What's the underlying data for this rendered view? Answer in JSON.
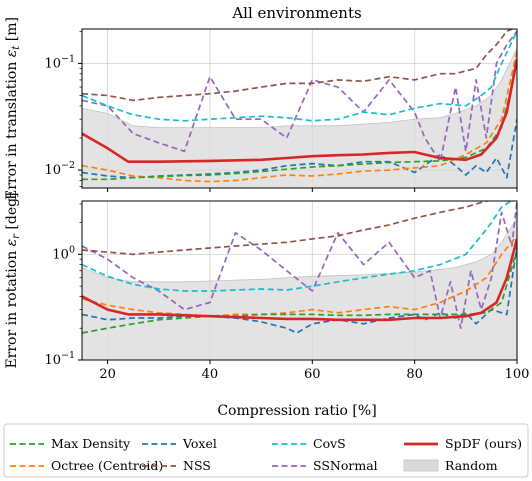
{
  "chart_data": {
    "type": "line",
    "title": "All environments",
    "xlabel": "Compression ratio [%]",
    "x_ticks": [
      "20",
      "40",
      "60",
      "80",
      "100"
    ],
    "xlim": [
      15,
      100
    ],
    "grid": true,
    "legend_position": "bottom",
    "colors": {
      "Max Density": "#2ca02c",
      "Octree (Centroid)": "#ff7f0e",
      "Voxel": "#1f77b4",
      "NSS": "#8c564b",
      "CovS": "#17becf",
      "SSNormal": "#9467bd",
      "SpDF (ours)": "#d62728",
      "Random": "#d9d9d9"
    },
    "legend": [
      {
        "name": "Max Density",
        "style": "dashed"
      },
      {
        "name": "Voxel",
        "style": "dashed"
      },
      {
        "name": "CovS",
        "style": "dashed"
      },
      {
        "name": "SpDF (ours)",
        "style": "solid"
      },
      {
        "name": "Octree (Centroid)",
        "style": "dashed"
      },
      {
        "name": "NSS",
        "style": "dashed"
      },
      {
        "name": "SSNormal",
        "style": "dashed"
      },
      {
        "name": "Random",
        "style": "band"
      }
    ],
    "panels": [
      {
        "ylabel": "Error in translation εt [m]",
        "yscale": "log",
        "ylim": [
          0.0068,
          0.21
        ],
        "y_ticks": [
          {
            "value": 0.01,
            "base": "10",
            "exp": "−2"
          },
          {
            "value": 0.1,
            "base": "10",
            "exp": "−1"
          }
        ],
        "series": [
          {
            "name": "Random",
            "kind": "band",
            "x": [
              15,
              20,
              25,
              30,
              35,
              40,
              45,
              50,
              55,
              60,
              65,
              70,
              75,
              80,
              85,
              88,
              92,
              95,
              97,
              100
            ],
            "upper": [
              0.038,
              0.034,
              0.026,
              0.025,
              0.025,
              0.025,
              0.025,
              0.025,
              0.026,
              0.026,
              0.026,
              0.027,
              0.028,
              0.03,
              0.031,
              0.034,
              0.04,
              0.05,
              0.07,
              0.14
            ]
          },
          {
            "name": "SSNormal",
            "x": [
              15,
              20,
              25,
              30,
              35,
              40,
              45,
              50,
              55,
              60,
              65,
              70,
              75,
              80,
              82,
              85,
              88,
              90,
              92,
              94,
              96,
              98,
              100
            ],
            "y": [
              0.045,
              0.04,
              0.022,
              0.018,
              0.015,
              0.075,
              0.03,
              0.03,
              0.02,
              0.07,
              0.06,
              0.035,
              0.07,
              0.035,
              0.02,
              0.012,
              0.06,
              0.015,
              0.07,
              0.02,
              0.1,
              0.15,
              0.2
            ]
          },
          {
            "name": "NSS",
            "x": [
              15,
              20,
              25,
              30,
              35,
              40,
              45,
              50,
              55,
              60,
              65,
              70,
              75,
              80,
              85,
              88,
              90,
              92,
              94,
              96,
              98,
              100
            ],
            "y": [
              0.052,
              0.05,
              0.045,
              0.048,
              0.05,
              0.052,
              0.055,
              0.06,
              0.065,
              0.065,
              0.07,
              0.068,
              0.075,
              0.07,
              0.08,
              0.08,
              0.085,
              0.09,
              0.12,
              0.15,
              0.2,
              0.22
            ]
          },
          {
            "name": "CovS",
            "x": [
              15,
              20,
              25,
              30,
              35,
              40,
              45,
              50,
              55,
              60,
              65,
              70,
              75,
              80,
              85,
              90,
              93,
              95,
              97,
              100
            ],
            "y": [
              0.05,
              0.04,
              0.033,
              0.03,
              0.029,
              0.03,
              0.031,
              0.032,
              0.031,
              0.029,
              0.03,
              0.035,
              0.033,
              0.038,
              0.042,
              0.04,
              0.05,
              0.06,
              0.1,
              0.2
            ]
          },
          {
            "name": "Voxel",
            "x": [
              15,
              20,
              25,
              30,
              35,
              40,
              45,
              50,
              55,
              60,
              65,
              70,
              75,
              80,
              85,
              88,
              90,
              92,
              94,
              96,
              98,
              100
            ],
            "y": [
              0.0095,
              0.0088,
              0.0085,
              0.0088,
              0.009,
              0.0092,
              0.0095,
              0.01,
              0.011,
              0.0115,
              0.011,
              0.012,
              0.012,
              0.0095,
              0.014,
              0.011,
              0.009,
              0.011,
              0.0095,
              0.013,
              0.0085,
              0.03
            ]
          },
          {
            "name": "Octree (Centroid)",
            "x": [
              15,
              20,
              25,
              30,
              35,
              40,
              45,
              50,
              55,
              60,
              65,
              70,
              75,
              80,
              85,
              90,
              94,
              97,
              100
            ],
            "y": [
              0.011,
              0.01,
              0.0088,
              0.0085,
              0.008,
              0.0078,
              0.008,
              0.0085,
              0.009,
              0.0088,
              0.0092,
              0.0098,
              0.01,
              0.0105,
              0.011,
              0.014,
              0.018,
              0.03,
              0.13
            ]
          },
          {
            "name": "Max Density",
            "x": [
              15,
              20,
              25,
              30,
              35,
              40,
              45,
              50,
              55,
              60,
              65,
              70,
              75,
              80,
              85,
              90,
              94,
              97,
              100
            ],
            "y": [
              0.0082,
              0.0082,
              0.0085,
              0.0087,
              0.0089,
              0.009,
              0.0093,
              0.0097,
              0.0102,
              0.0107,
              0.011,
              0.0114,
              0.0118,
              0.012,
              0.0122,
              0.0132,
              0.016,
              0.025,
              0.1
            ]
          },
          {
            "name": "SpDF (ours)",
            "x": [
              15,
              20,
              24,
              30,
              40,
              50,
              55,
              60,
              65,
              70,
              75,
              80,
              82,
              85,
              90,
              93,
              96,
              98,
              100
            ],
            "y": [
              0.022,
              0.016,
              0.012,
              0.012,
              0.0122,
              0.0125,
              0.013,
              0.0135,
              0.0138,
              0.014,
              0.0145,
              0.0148,
              0.014,
              0.013,
              0.0125,
              0.014,
              0.02,
              0.035,
              0.11
            ]
          }
        ]
      },
      {
        "ylabel": "Error in rotation εr [deg]",
        "yscale": "log",
        "ylim": [
          0.1,
          3.2
        ],
        "y_ticks": [
          {
            "value": 0.1,
            "base": "10",
            "exp": "−1"
          },
          {
            "value": 1,
            "base": "10",
            "exp": "0"
          }
        ],
        "series": [
          {
            "name": "Random",
            "kind": "band",
            "x": [
              15,
              20,
              25,
              30,
              35,
              40,
              45,
              50,
              55,
              60,
              65,
              70,
              75,
              80,
              85,
              88,
              92,
              95,
              97,
              100
            ],
            "upper": [
              0.75,
              0.6,
              0.55,
              0.55,
              0.55,
              0.56,
              0.57,
              0.58,
              0.6,
              0.62,
              0.63,
              0.64,
              0.66,
              0.68,
              0.72,
              0.75,
              0.85,
              1.0,
              1.3,
              2.2
            ]
          },
          {
            "name": "SSNormal",
            "x": [
              15,
              20,
              25,
              30,
              35,
              40,
              45,
              50,
              55,
              60,
              65,
              70,
              75,
              80,
              83,
              85,
              87,
              89,
              91,
              93,
              95,
              97,
              99,
              100
            ],
            "y": [
              1.2,
              0.9,
              0.6,
              0.45,
              0.3,
              0.35,
              1.6,
              1.1,
              0.7,
              0.45,
              1.6,
              0.8,
              1.3,
              0.6,
              0.7,
              0.25,
              0.55,
              0.2,
              0.7,
              0.3,
              0.6,
              2.5,
              1.2,
              3.2
            ]
          },
          {
            "name": "NSS",
            "x": [
              15,
              20,
              25,
              30,
              35,
              40,
              45,
              50,
              55,
              60,
              65,
              70,
              75,
              80,
              85,
              90,
              94,
              97,
              100
            ],
            "y": [
              1.1,
              1.05,
              1.0,
              1.05,
              1.1,
              1.15,
              1.2,
              1.25,
              1.3,
              1.4,
              1.5,
              1.7,
              1.9,
              2.2,
              2.5,
              2.8,
              3.2,
              3.5,
              3.8
            ]
          },
          {
            "name": "CovS",
            "x": [
              15,
              20,
              25,
              30,
              35,
              40,
              45,
              50,
              55,
              60,
              65,
              70,
              75,
              80,
              85,
              90,
              93,
              95,
              97,
              100
            ],
            "y": [
              0.8,
              0.62,
              0.52,
              0.47,
              0.45,
              0.45,
              0.46,
              0.47,
              0.46,
              0.5,
              0.55,
              0.6,
              0.65,
              0.7,
              0.8,
              1.0,
              1.5,
              2.0,
              2.8,
              3.5
            ]
          },
          {
            "name": "Voxel",
            "x": [
              15,
              20,
              25,
              30,
              35,
              40,
              45,
              50,
              55,
              57,
              60,
              65,
              70,
              75,
              80,
              82,
              85,
              88,
              90,
              92,
              95,
              98,
              100
            ],
            "y": [
              0.27,
              0.24,
              0.25,
              0.25,
              0.26,
              0.26,
              0.25,
              0.23,
              0.2,
              0.18,
              0.22,
              0.24,
              0.22,
              0.25,
              0.27,
              0.24,
              0.28,
              0.25,
              0.28,
              0.22,
              0.3,
              0.27,
              1.2
            ]
          },
          {
            "name": "Octree (Centroid)",
            "x": [
              15,
              20,
              25,
              30,
              35,
              40,
              45,
              50,
              55,
              60,
              65,
              70,
              75,
              80,
              85,
              90,
              94,
              97,
              100
            ],
            "y": [
              0.38,
              0.33,
              0.3,
              0.28,
              0.27,
              0.26,
              0.27,
              0.27,
              0.28,
              0.3,
              0.28,
              0.3,
              0.32,
              0.3,
              0.35,
              0.45,
              0.6,
              1.0,
              1.5
            ]
          },
          {
            "name": "Max Density",
            "x": [
              15,
              20,
              25,
              30,
              35,
              40,
              45,
              50,
              55,
              60,
              65,
              70,
              75,
              80,
              85,
              90,
              94,
              97,
              100
            ],
            "y": [
              0.18,
              0.2,
              0.22,
              0.24,
              0.25,
              0.26,
              0.26,
              0.27,
              0.27,
              0.27,
              0.265,
              0.265,
              0.27,
              0.27,
              0.27,
              0.27,
              0.28,
              0.35,
              1.1
            ]
          },
          {
            "name": "SpDF (ours)",
            "x": [
              15,
              20,
              24,
              30,
              35,
              40,
              45,
              50,
              55,
              60,
              65,
              70,
              75,
              80,
              85,
              90,
              93,
              96,
              98,
              100
            ],
            "y": [
              0.4,
              0.3,
              0.27,
              0.27,
              0.265,
              0.26,
              0.255,
              0.25,
              0.245,
              0.245,
              0.24,
              0.24,
              0.24,
              0.25,
              0.25,
              0.26,
              0.28,
              0.35,
              0.6,
              1.4
            ]
          }
        ]
      }
    ]
  }
}
